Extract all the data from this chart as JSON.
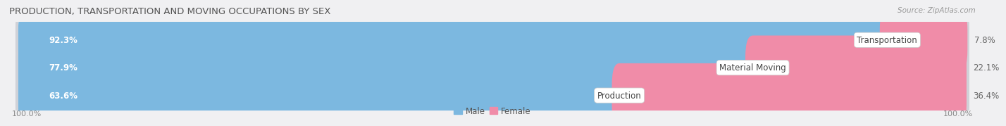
{
  "title": "PRODUCTION, TRANSPORTATION AND MOVING OCCUPATIONS BY SEX",
  "source": "Source: ZipAtlas.com",
  "categories": [
    "Transportation",
    "Material Moving",
    "Production"
  ],
  "male_values": [
    92.3,
    77.9,
    63.6
  ],
  "female_values": [
    7.8,
    22.1,
    36.4
  ],
  "male_color": "#7cb8e0",
  "female_color": "#f08ca8",
  "male_label": "Male",
  "female_label": "Female",
  "row_bg_color": "#e8eaed",
  "row_inner_color": "#f4f4f6",
  "fig_bg_color": "#f0f0f2",
  "title_fontsize": 9.5,
  "source_fontsize": 7.5,
  "label_fontsize": 8.5,
  "pct_fontsize": 8.5,
  "axis_label_fontsize": 8,
  "left_axis_label": "100.0%",
  "right_axis_label": "100.0%"
}
